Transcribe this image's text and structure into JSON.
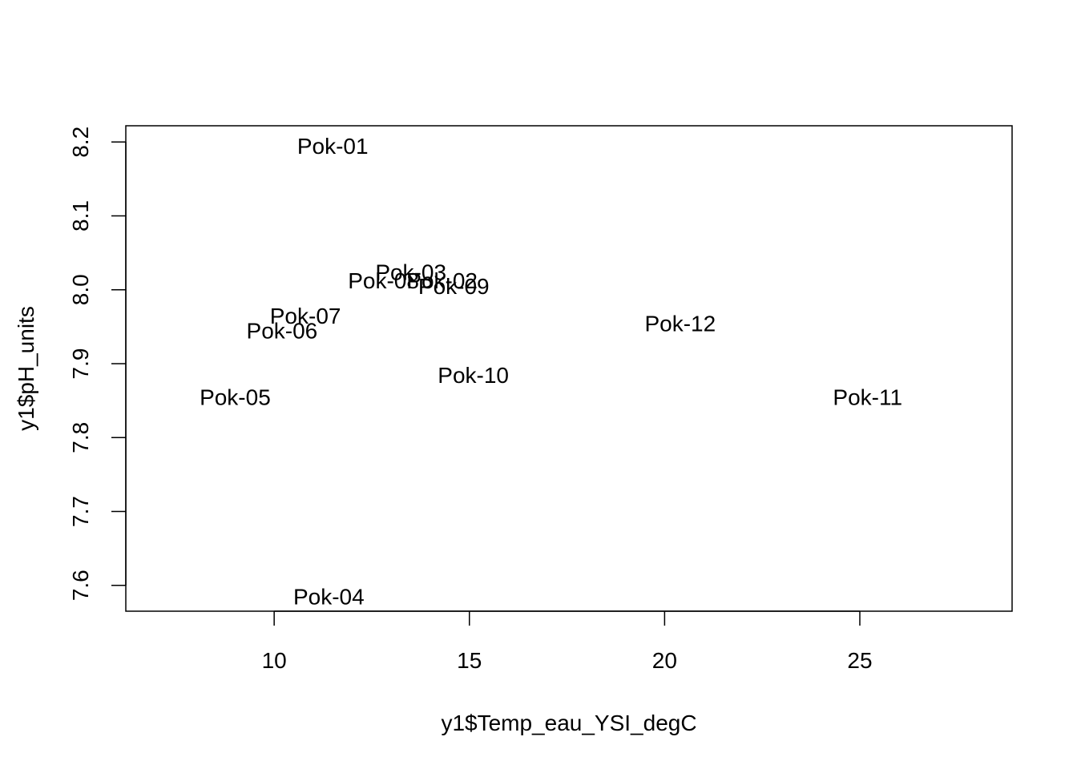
{
  "chart_data": {
    "type": "scatter",
    "title": "",
    "xlabel": "y1$Temp_eau_YSI_degC",
    "ylabel": "y1$pH_units",
    "xlim": [
      6.2,
      28.9
    ],
    "ylim": [
      7.565,
      8.222
    ],
    "x_ticks": [
      10,
      15,
      20,
      25
    ],
    "y_ticks": [
      7.6,
      7.7,
      7.8,
      7.9,
      8.0,
      8.1,
      8.2
    ],
    "x_tick_labels": [
      "10",
      "15",
      "20",
      "25"
    ],
    "y_tick_labels": [
      "7.6",
      "7.7",
      "7.8",
      "7.9",
      "8.0",
      "8.1",
      "8.2"
    ],
    "grid": false,
    "points": [
      {
        "label": "Pok-01",
        "x": 11.5,
        "y": 8.195
      },
      {
        "label": "Pok-02",
        "x": 14.3,
        "y": 8.013
      },
      {
        "label": "Pok-03",
        "x": 13.5,
        "y": 8.024
      },
      {
        "label": "Pok-08",
        "x": 12.8,
        "y": 8.013
      },
      {
        "label": "Pok-09",
        "x": 14.6,
        "y": 8.005
      },
      {
        "label": "Pok-07",
        "x": 10.8,
        "y": 7.965
      },
      {
        "label": "Pok-06",
        "x": 10.2,
        "y": 7.945
      },
      {
        "label": "Pok-05",
        "x": 9.0,
        "y": 7.855
      },
      {
        "label": "Pok-10",
        "x": 15.1,
        "y": 7.885
      },
      {
        "label": "Pok-12",
        "x": 20.4,
        "y": 7.955
      },
      {
        "label": "Pok-11",
        "x": 25.2,
        "y": 7.855
      },
      {
        "label": "Pok-04",
        "x": 11.4,
        "y": 7.585
      }
    ]
  }
}
